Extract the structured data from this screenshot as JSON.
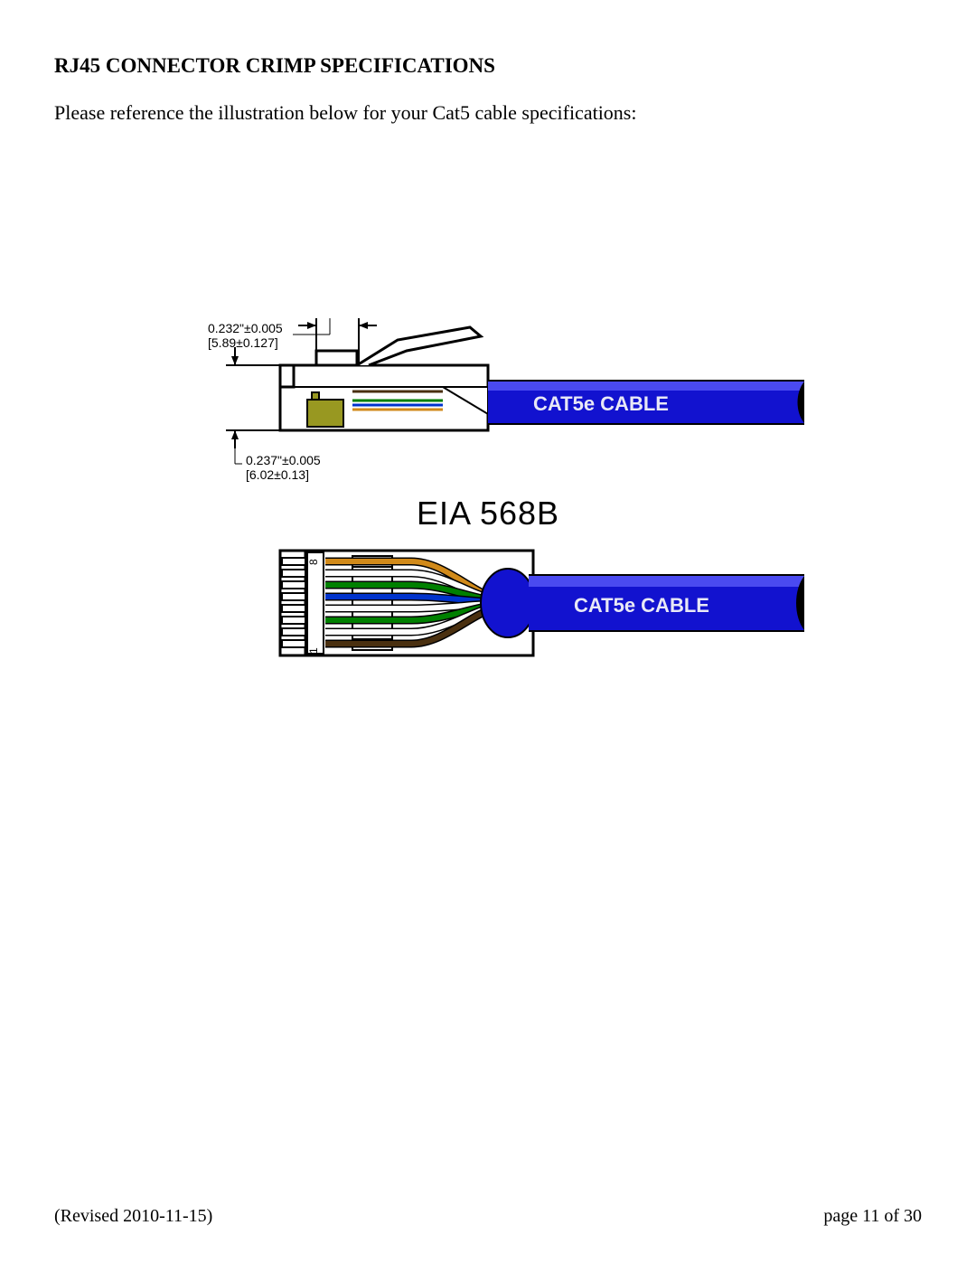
{
  "heading": "RJ45 CONNECTOR CRIMP SPECIFICATIONS",
  "intro": "Please reference the illustration below for your Cat5 cable specifications:",
  "dim_top_a": "0.232\"±0.005",
  "dim_top_b": "[5.89±0.127]",
  "dim_bot_a": "0.237\"±0.005",
  "dim_bot_b": "[6.02±0.13]",
  "eia_label": "EIA 568B",
  "cable_text": "CAT5e CABLE",
  "footer_left": "(Revised 2010-11-15)",
  "footer_right": "page 11 of 30",
  "colors": {
    "cable_blue": "#1212cf",
    "cable_hilite": "#4a4af0",
    "latch_olive": "#989821",
    "wire_brown": "#4a3010",
    "wire_green": "#008000",
    "wire_blue": "#0033cc",
    "wire_orange": "#d18a1a",
    "wire_white": "#fdfdfd",
    "outline": "#000000"
  },
  "pin_markers": {
    "top": "8",
    "bottom": "1"
  },
  "wires_568b": [
    "#d18a1a",
    "#fdfdfd",
    "#008000",
    "#0033cc",
    "#fdfdfd",
    "#008000",
    "#fdfdfd",
    "#4a3010"
  ]
}
